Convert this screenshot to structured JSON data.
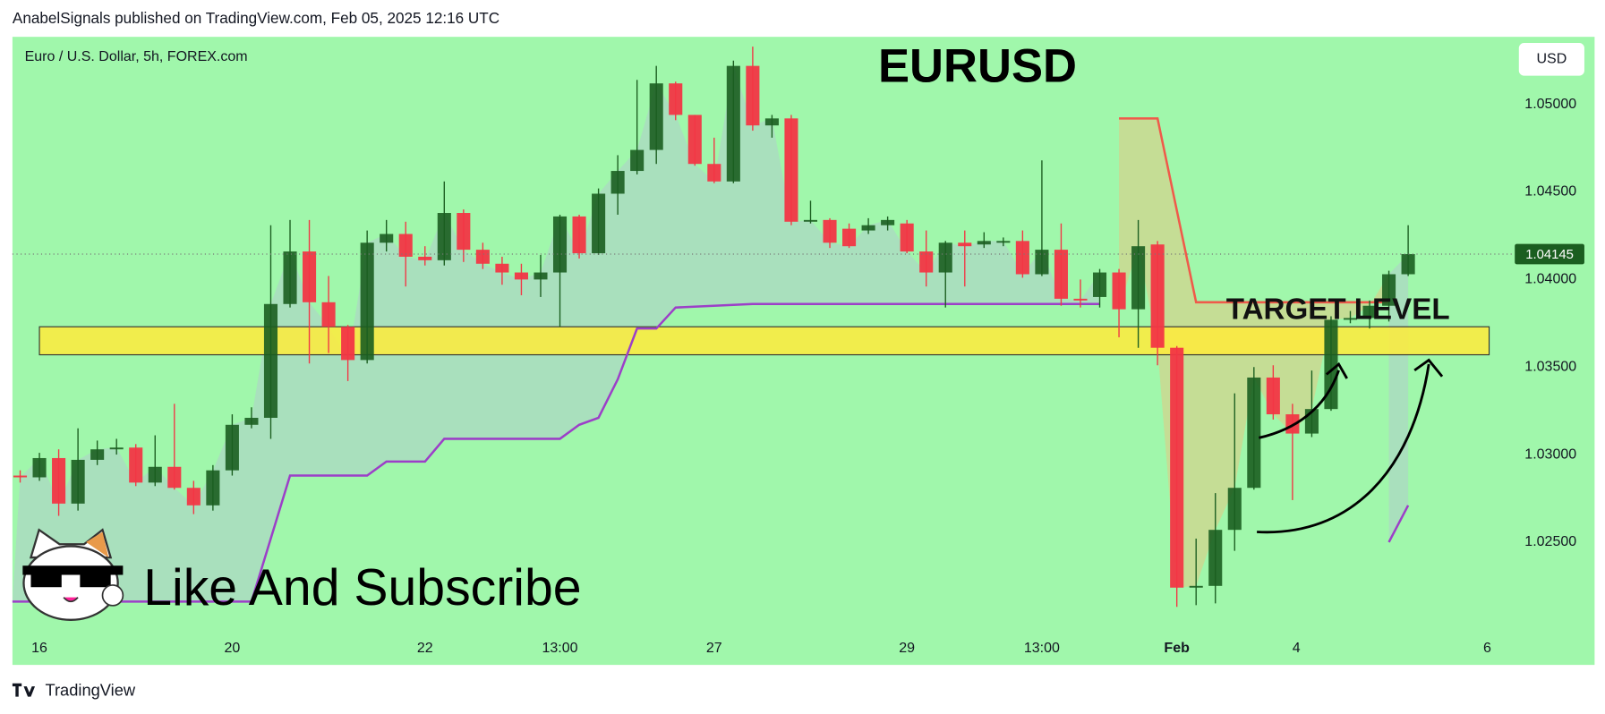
{
  "page": {
    "header": "AnabelSignals published on TradingView.com, Feb 05, 2025 12:16 UTC",
    "footer": "TradingView"
  },
  "chart_data": {
    "type": "candlestick",
    "title": "EURUSD",
    "subtitle": "Euro / U.S. Dollar, 5h, FOREX.com",
    "currency": "USD",
    "annotations": [
      "TARGET LEVEL",
      "Like And Subscribe"
    ],
    "up_color": "#1b5e20",
    "down_color": "#f23645",
    "background": "#a0f7ab",
    "open": [
      1.0288,
      1.0287,
      1.0298,
      1.0272,
      1.0297,
      1.0303,
      1.0304,
      1.0284,
      1.0293,
      1.0281,
      1.0271,
      1.0291,
      1.0317,
      1.0321,
      1.0386,
      1.0416,
      1.0387,
      1.0373,
      1.0354,
      1.0421,
      1.0426,
      1.0413,
      1.0411,
      1.0438,
      1.0417,
      1.0409,
      1.0404,
      1.04,
      1.0404,
      1.0436,
      1.0415,
      1.0449,
      1.0462,
      1.0474,
      1.0512,
      1.0494,
      1.0466,
      1.0456,
      1.0522,
      1.0488,
      1.0492,
      1.0433,
      1.0434,
      1.0429,
      1.0428,
      1.0431,
      1.0432,
      1.0416,
      1.0404,
      1.0421,
      1.042,
      1.0421,
      1.0422,
      1.0403,
      1.0417,
      1.0389,
      1.039,
      1.0404,
      1.0383,
      1.042,
      1.0361,
      1.0224,
      1.0225,
      1.0257,
      1.0281,
      1.0344,
      1.0323,
      1.0312,
      1.0326,
      1.0377,
      1.0378,
      1.0385,
      1.0403
    ],
    "high": [
      1.0291,
      1.0301,
      1.0303,
      1.0315,
      1.0308,
      1.0309,
      1.0306,
      1.0311,
      1.0329,
      1.0285,
      1.0294,
      1.0323,
      1.0327,
      1.0431,
      1.0434,
      1.0434,
      1.0402,
      1.0374,
      1.0428,
      1.0434,
      1.0433,
      1.0419,
      1.0456,
      1.044,
      1.0421,
      1.0413,
      1.0409,
      1.0414,
      1.0437,
      1.0437,
      1.0452,
      1.0471,
      1.0514,
      1.0522,
      1.0513,
      1.0494,
      1.0481,
      1.0525,
      1.0533,
      1.0494,
      1.0494,
      1.0445,
      1.0435,
      1.0432,
      1.0435,
      1.0436,
      1.0434,
      1.0428,
      1.0422,
      1.0428,
      1.0427,
      1.0424,
      1.0428,
      1.0468,
      1.0432,
      1.04,
      1.0406,
      1.0406,
      1.0434,
      1.0422,
      1.0362,
      1.0252,
      1.0278,
      1.0335,
      1.035,
      1.0351,
      1.0329,
      1.0348,
      1.0379,
      1.0382,
      1.0388,
      1.0405,
      1.0431
    ],
    "low": [
      1.0284,
      1.0285,
      1.0265,
      1.0268,
      1.0294,
      1.03,
      1.0282,
      1.0282,
      1.028,
      1.0266,
      1.0268,
      1.0288,
      1.0315,
      1.0309,
      1.0384,
      1.0352,
      1.0358,
      1.0342,
      1.0352,
      1.0416,
      1.0396,
      1.0408,
      1.0408,
      1.041,
      1.0406,
      1.0397,
      1.0391,
      1.039,
      1.0373,
      1.0412,
      1.0414,
      1.0437,
      1.046,
      1.0466,
      1.0491,
      1.0465,
      1.0455,
      1.0455,
      1.0485,
      1.0481,
      1.0431,
      1.0432,
      1.0418,
      1.0418,
      1.0426,
      1.0428,
      1.0415,
      1.0396,
      1.0384,
      1.0396,
      1.0418,
      1.0419,
      1.0401,
      1.0402,
      1.0385,
      1.0384,
      1.0384,
      1.0367,
      1.0361,
      1.0351,
      1.0213,
      1.0214,
      1.0215,
      1.0245,
      1.028,
      1.032,
      1.0274,
      1.031,
      1.0325,
      1.0375,
      1.0372,
      1.0376,
      1.0402
    ],
    "close": [
      1.0287,
      1.0298,
      1.0272,
      1.0297,
      1.0303,
      1.0304,
      1.0284,
      1.0293,
      1.0281,
      1.0271,
      1.0291,
      1.0317,
      1.0321,
      1.0386,
      1.0416,
      1.0387,
      1.0373,
      1.0354,
      1.0421,
      1.0426,
      1.0413,
      1.0411,
      1.0438,
      1.0417,
      1.0409,
      1.0404,
      1.04,
      1.0404,
      1.0436,
      1.0415,
      1.0449,
      1.0462,
      1.0474,
      1.0512,
      1.0494,
      1.0466,
      1.0456,
      1.0522,
      1.0488,
      1.0492,
      1.0433,
      1.0434,
      1.0421,
      1.0419,
      1.0431,
      1.0434,
      1.0416,
      1.0404,
      1.0421,
      1.0419,
      1.0422,
      1.0422,
      1.0403,
      1.0417,
      1.0389,
      1.0388,
      1.0404,
      1.0383,
      1.0419,
      1.0361,
      1.0224,
      1.0225,
      1.0257,
      1.0281,
      1.0344,
      1.0323,
      1.0312,
      1.0326,
      1.0377,
      1.0378,
      1.0385,
      1.0403,
      1.04145
    ],
    "lines": [
      {
        "color": "#9c3fc8",
        "fill": "#aadcc0",
        "x": [
          -0.4,
          12,
          14,
          18,
          19,
          21,
          22,
          28,
          29,
          30,
          31,
          32,
          33,
          34,
          38,
          56
        ],
        "values": [
          1.0216,
          1.0216,
          1.0288,
          1.0288,
          1.0296,
          1.0296,
          1.0309,
          1.0309,
          1.0317,
          1.0321,
          1.0343,
          1.0372,
          1.0372,
          1.0384,
          1.0386,
          1.0386
        ]
      },
      {
        "color": "#f05a4a",
        "fill": "#cbd891",
        "x": [
          57,
          59,
          61,
          71
        ],
        "values": [
          1.0492,
          1.0492,
          1.0387,
          1.0387
        ]
      },
      {
        "color": "#9c3fc8",
        "fill": "#aadcc0",
        "x": [
          71,
          72
        ],
        "values": [
          1.025,
          1.0271
        ]
      }
    ],
    "zone": {
      "color": "#ffeb3b",
      "x": [
        1,
        76.2
      ],
      "values": [
        1.0373,
        1.0357
      ]
    },
    "xlim": [
      -0.4,
      77
    ],
    "ylim": [
      1.01974,
      1.05386
    ],
    "xticks": [
      {
        "value": 1,
        "label": "16"
      },
      {
        "value": 11,
        "label": "20"
      },
      {
        "value": 21,
        "label": "22"
      },
      {
        "value": 28,
        "label": "13:00"
      },
      {
        "value": 36,
        "label": "27"
      },
      {
        "value": 46,
        "label": "29"
      },
      {
        "value": 53,
        "label": "13:00"
      },
      {
        "value": 60,
        "label": "Feb"
      },
      {
        "value": 66.2,
        "label": "4"
      },
      {
        "value": 76.1,
        "label": "6"
      }
    ],
    "yticks": [
      {
        "value": 1.025,
        "label": "1.02500"
      },
      {
        "value": 1.03,
        "label": "1.03000"
      },
      {
        "value": 1.035,
        "label": "1.03500"
      },
      {
        "value": 1.04,
        "label": "1.04000"
      },
      {
        "value": 1.045,
        "label": "1.04500"
      },
      {
        "value": 1.05,
        "label": "1.05000"
      }
    ]
  }
}
